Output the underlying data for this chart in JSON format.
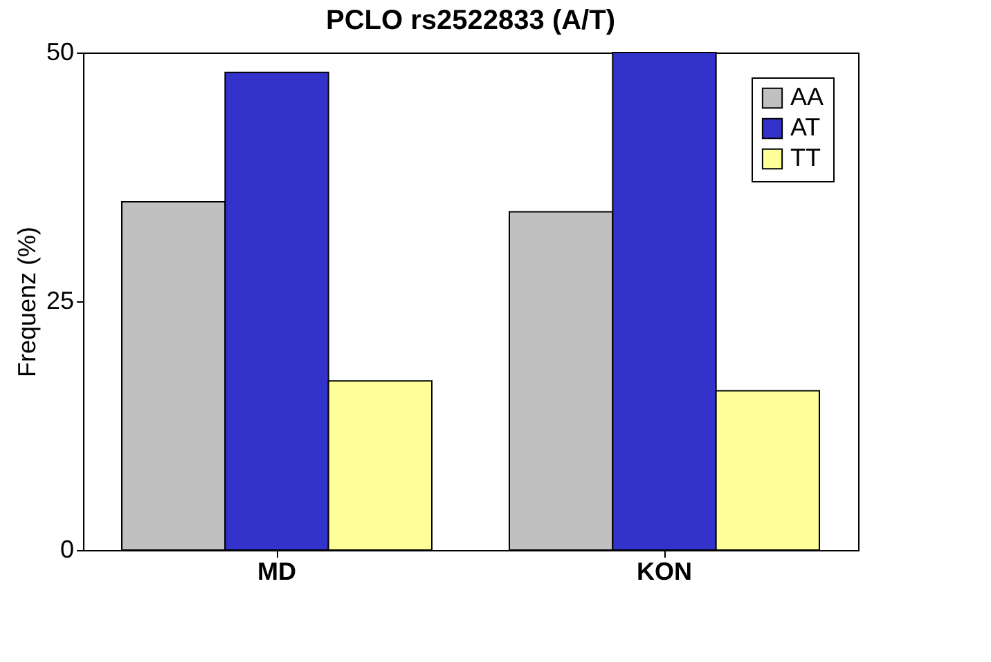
{
  "chart_data": {
    "type": "bar",
    "title": "PCLO rs2522833 (A/T)",
    "ylabel": "Frequenz (%)",
    "categories": [
      "MD",
      "KON"
    ],
    "series": [
      {
        "name": "AA",
        "color": "#c0c0c0",
        "values": [
          35,
          34
        ]
      },
      {
        "name": "AT",
        "color": "#3333cc",
        "values": [
          48,
          50
        ]
      },
      {
        "name": "TT",
        "color": "#ffff99",
        "values": [
          17,
          16
        ]
      }
    ],
    "ylim": [
      0,
      50
    ],
    "yticks": [
      0,
      25,
      50
    ],
    "grid": false,
    "legend": "top right"
  }
}
